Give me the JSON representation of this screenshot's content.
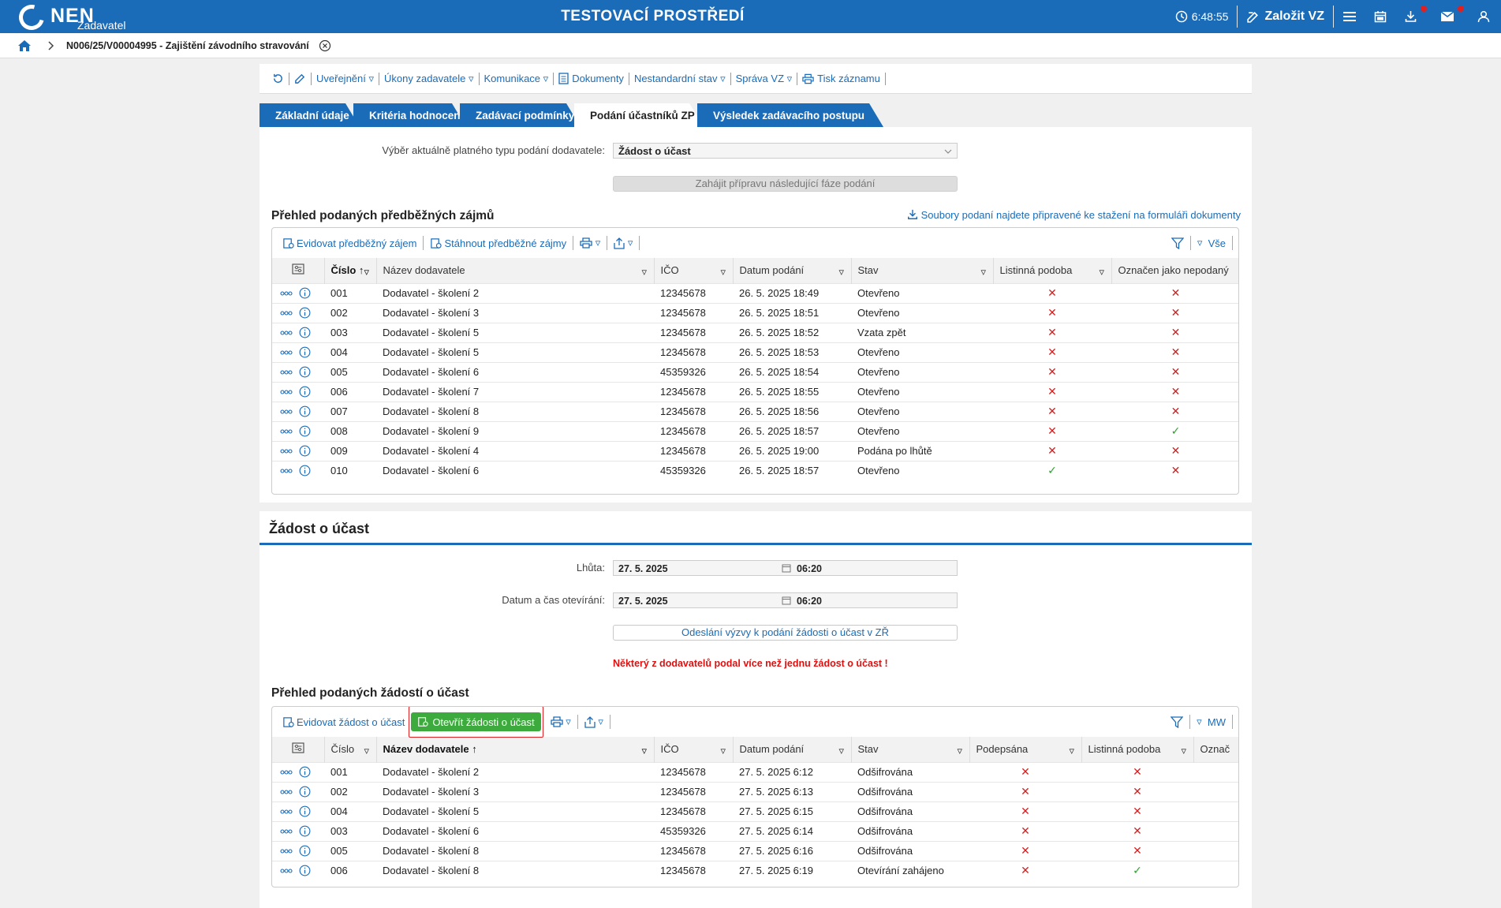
{
  "header": {
    "logo_text": "NEN",
    "logo_sub": "Zadavatel",
    "env_title": "TESTOVACÍ PROSTŘEDÍ",
    "time": "6:48:55",
    "create_label": "Založit VZ"
  },
  "breadcrumb": {
    "title": "N006/25/V00004995 - Zajištění závodního stravování"
  },
  "toolbar": {
    "items": [
      "Uveřejnění",
      "Úkony zadavatele",
      "Komunikace",
      "Dokumenty",
      "Nestandardní stav",
      "Správa VZ",
      "Tisk záznamu"
    ]
  },
  "tabs": [
    "Základní údaje",
    "Kritéria hodnocení",
    "Zadávací podmínky",
    "Podání účastníků ZP",
    "Výsledek zadávacího postupu"
  ],
  "submission_type": {
    "label": "Výběr aktuálně platného typu podání dodavatele:",
    "value": "Žádost o účast",
    "next_phase_button": "Zahájit přípravu následující fáze podání"
  },
  "grid1": {
    "title": "Přehled podaných předběžných zájmů",
    "files_link": "Soubory podaní najdete připravené ke stažení na formuláři dokumenty",
    "tool_add": "Evidovat předběžný zájem",
    "tool_download": "Stáhnout předběžné zájmy",
    "filter_label": "Vše",
    "columns": [
      "Číslo",
      "Název dodavatele",
      "IČO",
      "Datum podání",
      "Stav",
      "Listinná podoba",
      "Označen jako nepodaný"
    ],
    "rows": [
      {
        "no": "001",
        "name": "Dodavatel - školení 2",
        "ico": "12345678",
        "date": "26. 5. 2025 18:49",
        "state": "Otevřeno",
        "paper": "✕",
        "unsubmitted": "✕"
      },
      {
        "no": "002",
        "name": "Dodavatel - školení 3",
        "ico": "12345678",
        "date": "26. 5. 2025 18:51",
        "state": "Otevřeno",
        "paper": "✕",
        "unsubmitted": "✕"
      },
      {
        "no": "003",
        "name": "Dodavatel - školení 5",
        "ico": "12345678",
        "date": "26. 5. 2025 18:52",
        "state": "Vzata zpět",
        "paper": "✕",
        "unsubmitted": "✕"
      },
      {
        "no": "004",
        "name": "Dodavatel - školení 5",
        "ico": "12345678",
        "date": "26. 5. 2025 18:53",
        "state": "Otevřeno",
        "paper": "✕",
        "unsubmitted": "✕"
      },
      {
        "no": "005",
        "name": "Dodavatel - školení 6",
        "ico": "45359326",
        "date": "26. 5. 2025 18:54",
        "state": "Otevřeno",
        "paper": "✕",
        "unsubmitted": "✕"
      },
      {
        "no": "006",
        "name": "Dodavatel - školení 7",
        "ico": "12345678",
        "date": "26. 5. 2025 18:55",
        "state": "Otevřeno",
        "paper": "✕",
        "unsubmitted": "✕"
      },
      {
        "no": "007",
        "name": "Dodavatel - školení 8",
        "ico": "12345678",
        "date": "26. 5. 2025 18:56",
        "state": "Otevřeno",
        "paper": "✕",
        "unsubmitted": "✕"
      },
      {
        "no": "008",
        "name": "Dodavatel - školení 9",
        "ico": "12345678",
        "date": "26. 5. 2025 18:57",
        "state": "Otevřeno",
        "paper": "✕",
        "unsubmitted": "✓"
      },
      {
        "no": "009",
        "name": "Dodavatel - školení 4",
        "ico": "12345678",
        "date": "26. 5. 2025 19:00",
        "state": "Podána po lhůtě",
        "paper": "✕",
        "unsubmitted": "✕"
      },
      {
        "no": "010",
        "name": "Dodavatel - školení 6",
        "ico": "45359326",
        "date": "26. 5. 2025 18:57",
        "state": "Otevřeno",
        "paper": "✓",
        "unsubmitted": "✕"
      }
    ]
  },
  "section2": {
    "title": "Žádost o účast",
    "deadline_label": "Lhůta:",
    "deadline_date": "27. 5. 2025",
    "deadline_time": "06:20",
    "opening_label": "Datum a čas otevírání:",
    "opening_date": "27. 5. 2025",
    "opening_time": "06:20",
    "invite_button": "Odeslání výzvy k podání žádosti o účast v ZŘ",
    "warning": "Některý z dodavatelů podal více než jednu žádost o účast !"
  },
  "grid2": {
    "title": "Přehled podaných žádostí o účast",
    "tool_add": "Evidovat žádost o účast",
    "tool_open": "Otevřít žádosti o účast",
    "filter_label": "MW",
    "columns": [
      "Číslo",
      "Název dodavatele",
      "IČO",
      "Datum podání",
      "Stav",
      "Podepsána",
      "Listinná podoba",
      "Označ"
    ],
    "rows": [
      {
        "no": "001",
        "name": "Dodavatel - školení 2",
        "ico": "12345678",
        "date": "27. 5. 2025 6:12",
        "state": "Odšifrována",
        "signed": "✕",
        "paper": "✕"
      },
      {
        "no": "002",
        "name": "Dodavatel - školení 3",
        "ico": "12345678",
        "date": "27. 5. 2025 6:13",
        "state": "Odšifrována",
        "signed": "✕",
        "paper": "✕"
      },
      {
        "no": "004",
        "name": "Dodavatel - školení 5",
        "ico": "12345678",
        "date": "27. 5. 2025 6:15",
        "state": "Odšifrována",
        "signed": "✕",
        "paper": "✕"
      },
      {
        "no": "003",
        "name": "Dodavatel - školení 6",
        "ico": "45359326",
        "date": "27. 5. 2025 6:14",
        "state": "Odšifrována",
        "signed": "✕",
        "paper": "✕"
      },
      {
        "no": "005",
        "name": "Dodavatel - školení 8",
        "ico": "12345678",
        "date": "27. 5. 2025 6:16",
        "state": "Odšifrována",
        "signed": "✕",
        "paper": "✕"
      },
      {
        "no": "006",
        "name": "Dodavatel - školení 8",
        "ico": "12345678",
        "date": "27. 5. 2025 6:19",
        "state": "Otevírání zahájeno",
        "signed": "✕",
        "paper": "✓"
      }
    ]
  }
}
